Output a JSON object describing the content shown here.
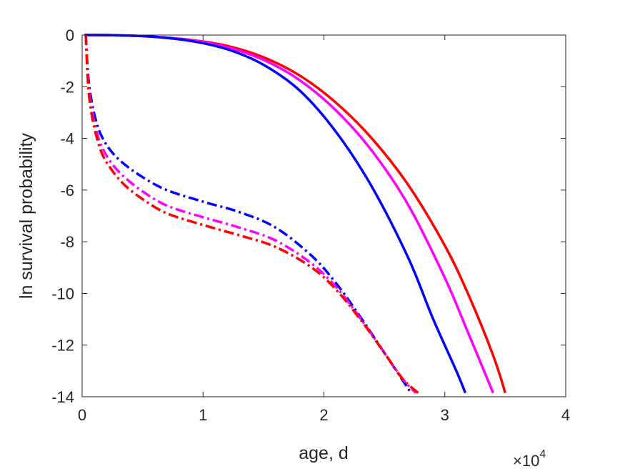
{
  "chart_data": {
    "type": "line",
    "title": "",
    "xlabel": "age, d",
    "ylabel": "ln survival probability",
    "x_multiplier_label": {
      "base": "×10",
      "exponent": "4"
    },
    "xlim": [
      0,
      4
    ],
    "ylim": [
      -14,
      0
    ],
    "x_ticks": [
      0,
      1,
      2,
      3,
      4
    ],
    "x_tick_labels": [
      "0",
      "1",
      "2",
      "3",
      "4"
    ],
    "y_ticks": [
      0,
      -2,
      -4,
      -6,
      -8,
      -10,
      -12,
      -14
    ],
    "y_tick_labels": [
      "0",
      "-2",
      "-4",
      "-6",
      "-8",
      "-10",
      "-12",
      "-14"
    ],
    "grid": false,
    "legend": "none",
    "series": [
      {
        "color": "#ff0000",
        "style": "solid",
        "x": [
          0.02,
          0.3,
          0.6,
          0.9,
          1.2,
          1.5,
          1.8,
          2.1,
          2.4,
          2.7,
          3.0,
          3.2,
          3.4,
          3.5
        ],
        "y": [
          0,
          -0.01,
          -0.07,
          -0.19,
          -0.42,
          -0.86,
          -1.57,
          -2.62,
          -4.02,
          -5.82,
          -8.15,
          -10.1,
          -12.4,
          -13.85
        ]
      },
      {
        "color": "#ff00ff",
        "style": "solid",
        "x": [
          0.02,
          0.3,
          0.6,
          0.9,
          1.2,
          1.5,
          1.8,
          2.1,
          2.4,
          2.7,
          3.0,
          3.2,
          3.4
        ],
        "y": [
          0,
          -0.01,
          -0.07,
          -0.2,
          -0.47,
          -0.96,
          -1.75,
          -2.92,
          -4.5,
          -6.6,
          -9.4,
          -11.6,
          -13.85
        ]
      },
      {
        "color": "#0000ff",
        "style": "solid",
        "x": [
          0.02,
          0.3,
          0.6,
          0.9,
          1.2,
          1.5,
          1.8,
          2.1,
          2.4,
          2.7,
          2.9,
          3.1,
          3.17
        ],
        "y": [
          0,
          -0.01,
          -0.07,
          -0.23,
          -0.55,
          -1.15,
          -2.15,
          -3.75,
          -5.9,
          -8.65,
          -10.95,
          -13.05,
          -13.85
        ]
      },
      {
        "color": "#0000ff",
        "style": "dashdot",
        "x": [
          0.03,
          0.05,
          0.08,
          0.12,
          0.17,
          0.25,
          0.35,
          0.5,
          0.7,
          1.0,
          1.3,
          1.6,
          1.9,
          2.1,
          2.3,
          2.5,
          2.65,
          2.72
        ],
        "y": [
          0,
          -1.6,
          -2.6,
          -3.4,
          -4.0,
          -4.55,
          -5.0,
          -5.5,
          -6.0,
          -6.45,
          -6.85,
          -7.45,
          -8.55,
          -9.6,
          -10.9,
          -12.3,
          -13.35,
          -13.85
        ]
      },
      {
        "color": "#ff00ff",
        "style": "dashdot",
        "x": [
          0.03,
          0.05,
          0.08,
          0.12,
          0.17,
          0.25,
          0.35,
          0.5,
          0.7,
          1.0,
          1.3,
          1.6,
          1.9,
          2.1,
          2.3,
          2.5,
          2.65,
          2.76
        ],
        "y": [
          0,
          -1.8,
          -2.9,
          -3.75,
          -4.4,
          -5.0,
          -5.5,
          -6.05,
          -6.6,
          -7.05,
          -7.45,
          -7.95,
          -8.85,
          -9.75,
          -10.95,
          -12.3,
          -13.3,
          -13.85
        ]
      },
      {
        "color": "#ff0000",
        "style": "dashdot",
        "x": [
          0.03,
          0.05,
          0.08,
          0.12,
          0.17,
          0.25,
          0.35,
          0.5,
          0.7,
          1.0,
          1.3,
          1.6,
          1.9,
          2.1,
          2.3,
          2.5,
          2.65,
          2.78
        ],
        "y": [
          0,
          -2.0,
          -3.1,
          -3.95,
          -4.65,
          -5.25,
          -5.8,
          -6.35,
          -6.9,
          -7.35,
          -7.75,
          -8.2,
          -9.0,
          -9.85,
          -11.0,
          -12.3,
          -13.3,
          -13.85
        ]
      }
    ]
  }
}
